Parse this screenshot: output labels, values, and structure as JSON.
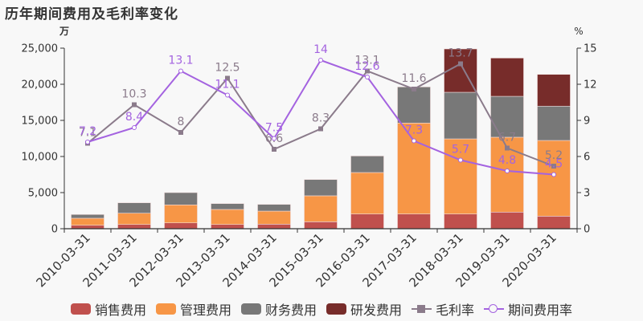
{
  "title": "历年期间费用及毛利率变化",
  "left_axis_unit": "万",
  "right_axis_unit": "%",
  "colors": {
    "sales": "#c0504d",
    "admin": "#f79646",
    "finance": "#787878",
    "rnd": "#772c2a",
    "gross_margin": "#8b7b8b",
    "expense_rate": "#a463e0",
    "background": "#f8f8f8"
  },
  "legend": [
    {
      "label": "销售费用",
      "type": "bar",
      "color": "#c0504d"
    },
    {
      "label": "管理费用",
      "type": "bar",
      "color": "#f79646"
    },
    {
      "label": "财务费用",
      "type": "bar",
      "color": "#787878"
    },
    {
      "label": "研发费用",
      "type": "bar",
      "color": "#772c2a"
    },
    {
      "label": "毛利率",
      "type": "line-square",
      "color": "#8b7b8b"
    },
    {
      "label": "期间费用率",
      "type": "line-circle",
      "color": "#a463e0"
    }
  ],
  "chart_data": {
    "type": "bar",
    "title": "历年期间费用及毛利率变化",
    "xlabel": "",
    "ylabel": "万",
    "ylabel_right": "%",
    "ylim": [
      0,
      25000
    ],
    "ylim_right": [
      0,
      15
    ],
    "yticks": [
      "0",
      "5,000",
      "10,000",
      "15,000",
      "20,000",
      "25,000"
    ],
    "yticks_right": [
      "0",
      "3",
      "6",
      "9",
      "12",
      "15"
    ],
    "grid": false,
    "legend_position": "bottom",
    "stacked": true,
    "categories": [
      "2010-03-31",
      "2011-03-31",
      "2012-03-31",
      "2013-03-31",
      "2014-03-31",
      "2015-03-31",
      "2016-03-31",
      "2017-03-31",
      "2018-03-31",
      "2019-03-31",
      "2020-03-31"
    ],
    "series": [
      {
        "name": "销售费用",
        "type": "bar",
        "axis": "left",
        "values": [
          480,
          590,
          810,
          590,
          630,
          960,
          2040,
          2040,
          2040,
          2300,
          1740
        ]
      },
      {
        "name": "管理费用",
        "type": "bar",
        "axis": "left",
        "values": [
          970,
          1560,
          2490,
          2080,
          1810,
          3600,
          5740,
          12590,
          10400,
          10370,
          10480
        ]
      },
      {
        "name": "财务费用",
        "type": "bar",
        "axis": "left",
        "values": [
          520,
          1440,
          1700,
          810,
          930,
          2250,
          2290,
          5000,
          6450,
          5660,
          4750
        ]
      },
      {
        "name": "研发费用",
        "type": "bar",
        "axis": "left",
        "values": [
          0,
          0,
          0,
          0,
          0,
          0,
          0,
          0,
          6000,
          5300,
          4400
        ]
      },
      {
        "name": "毛利率",
        "type": "line",
        "axis": "right",
        "values": [
          7.1,
          10.3,
          8,
          12.5,
          6.6,
          8.3,
          13.1,
          11.6,
          13.7,
          6.7,
          5.2
        ]
      },
      {
        "name": "期间费用率",
        "type": "line",
        "axis": "right",
        "values": [
          7.2,
          8.4,
          13.1,
          11.1,
          7.5,
          14,
          12.6,
          7.3,
          5.7,
          4.8,
          4.5
        ]
      }
    ]
  }
}
